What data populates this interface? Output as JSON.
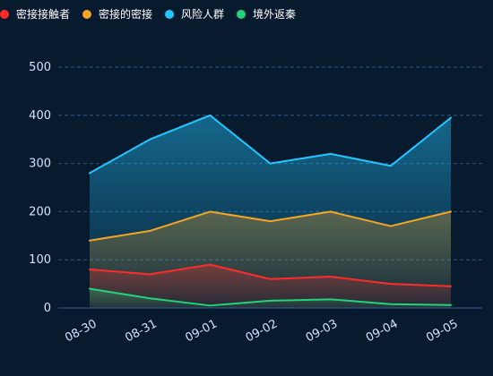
{
  "chart_data": {
    "type": "area",
    "categories": [
      "08-30",
      "08-31",
      "09-01",
      "09-02",
      "09-03",
      "09-04",
      "09-05"
    ],
    "y_ticks": [
      0,
      100,
      200,
      300,
      400,
      500
    ],
    "ylim": [
      0,
      500
    ],
    "grid": "horizontal dashed",
    "legend_position": "top-left",
    "series": [
      {
        "name": "密接接触者",
        "color": "#ff2b2b",
        "values": [
          80,
          70,
          90,
          60,
          65,
          50,
          45
        ]
      },
      {
        "name": "密接的密接",
        "color": "#f5a623",
        "values": [
          140,
          160,
          200,
          180,
          200,
          170,
          200
        ]
      },
      {
        "name": "风险人群",
        "color": "#24c6ff",
        "values": [
          280,
          350,
          400,
          300,
          320,
          295,
          395
        ]
      },
      {
        "name": "境外返秦",
        "color": "#22d37a",
        "values": [
          40,
          20,
          5,
          15,
          18,
          8,
          6
        ]
      }
    ]
  }
}
